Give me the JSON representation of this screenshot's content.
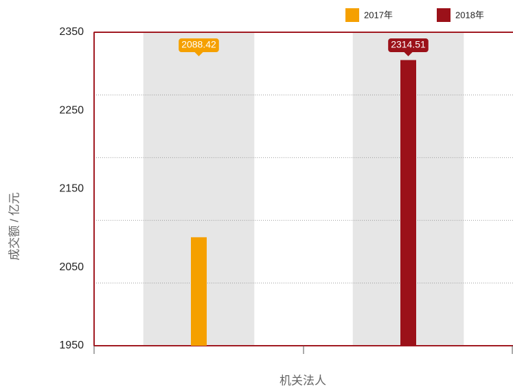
{
  "chart_data": {
    "type": "bar",
    "x_label": "机关法人",
    "y_label": "成交额 / 亿元",
    "categories": [
      null,
      null
    ],
    "series": [
      {
        "name": "2017年",
        "color": "#f5a000",
        "values": [
          2088.42,
          null
        ]
      },
      {
        "name": "2018年",
        "color": "#9b1119",
        "values": [
          null,
          2314.51
        ]
      }
    ],
    "ylim": [
      1950,
      2350
    ],
    "yticks": [
      1950,
      2050,
      2150,
      2250,
      2350
    ],
    "ygrid": [
      2030,
      2110,
      2190,
      2270
    ],
    "grid": true,
    "legend": "top-right"
  }
}
